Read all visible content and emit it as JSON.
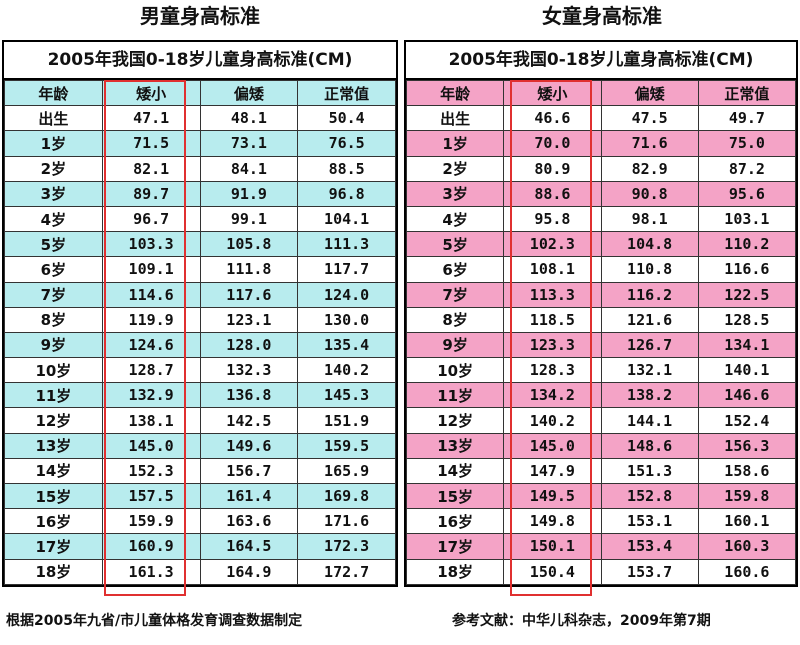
{
  "boys": {
    "heading": "男童身高标准",
    "subtitle": "2005年我国0-18岁儿童身高标准(CM)",
    "columns": [
      "年龄",
      "矮小",
      "偏矮",
      "正常值"
    ],
    "rows": [
      [
        "出生",
        "47.1",
        "48.1",
        "50.4"
      ],
      [
        "1岁",
        "71.5",
        "73.1",
        "76.5"
      ],
      [
        "2岁",
        "82.1",
        "84.1",
        "88.5"
      ],
      [
        "3岁",
        "89.7",
        "91.9",
        "96.8"
      ],
      [
        "4岁",
        "96.7",
        "99.1",
        "104.1"
      ],
      [
        "5岁",
        "103.3",
        "105.8",
        "111.3"
      ],
      [
        "6岁",
        "109.1",
        "111.8",
        "117.7"
      ],
      [
        "7岁",
        "114.6",
        "117.6",
        "124.0"
      ],
      [
        "8岁",
        "119.9",
        "123.1",
        "130.0"
      ],
      [
        "9岁",
        "124.6",
        "128.0",
        "135.4"
      ],
      [
        "10岁",
        "128.7",
        "132.3",
        "140.2"
      ],
      [
        "11岁",
        "132.9",
        "136.8",
        "145.3"
      ],
      [
        "12岁",
        "138.1",
        "142.5",
        "151.9"
      ],
      [
        "13岁",
        "145.0",
        "149.6",
        "159.5"
      ],
      [
        "14岁",
        "152.3",
        "156.7",
        "165.9"
      ],
      [
        "15岁",
        "157.5",
        "161.4",
        "169.8"
      ],
      [
        "16岁",
        "159.9",
        "163.6",
        "171.6"
      ],
      [
        "17岁",
        "160.9",
        "164.5",
        "172.3"
      ],
      [
        "18岁",
        "161.3",
        "164.9",
        "172.7"
      ]
    ]
  },
  "girls": {
    "heading": "女童身高标准",
    "subtitle": "2005年我国0-18岁儿童身高标准(CM)",
    "columns": [
      "年龄",
      "矮小",
      "偏矮",
      "正常值"
    ],
    "rows": [
      [
        "出生",
        "46.6",
        "47.5",
        "49.7"
      ],
      [
        "1岁",
        "70.0",
        "71.6",
        "75.0"
      ],
      [
        "2岁",
        "80.9",
        "82.9",
        "87.2"
      ],
      [
        "3岁",
        "88.6",
        "90.8",
        "95.6"
      ],
      [
        "4岁",
        "95.8",
        "98.1",
        "103.1"
      ],
      [
        "5岁",
        "102.3",
        "104.8",
        "110.2"
      ],
      [
        "6岁",
        "108.1",
        "110.8",
        "116.6"
      ],
      [
        "7岁",
        "113.3",
        "116.2",
        "122.5"
      ],
      [
        "8岁",
        "118.5",
        "121.6",
        "128.5"
      ],
      [
        "9岁",
        "123.3",
        "126.7",
        "134.1"
      ],
      [
        "10岁",
        "128.3",
        "132.1",
        "140.1"
      ],
      [
        "11岁",
        "134.2",
        "138.2",
        "146.6"
      ],
      [
        "12岁",
        "140.2",
        "144.1",
        "152.4"
      ],
      [
        "13岁",
        "145.0",
        "148.6",
        "156.3"
      ],
      [
        "14岁",
        "147.9",
        "151.3",
        "158.6"
      ],
      [
        "15岁",
        "149.5",
        "152.8",
        "159.8"
      ],
      [
        "16岁",
        "149.8",
        "153.1",
        "160.1"
      ],
      [
        "17岁",
        "150.1",
        "153.4",
        "160.3"
      ],
      [
        "18岁",
        "150.4",
        "153.7",
        "160.6"
      ]
    ]
  },
  "footer": {
    "left": "根据2005年九省/市儿童体格发育调查数据制定",
    "right": "参考文献：中华儿科杂志，2009年第7期"
  },
  "colors": {
    "boys_shade": "#b8ecee",
    "girls_shade": "#f4a3c6",
    "highlight_box": "#e03030"
  }
}
